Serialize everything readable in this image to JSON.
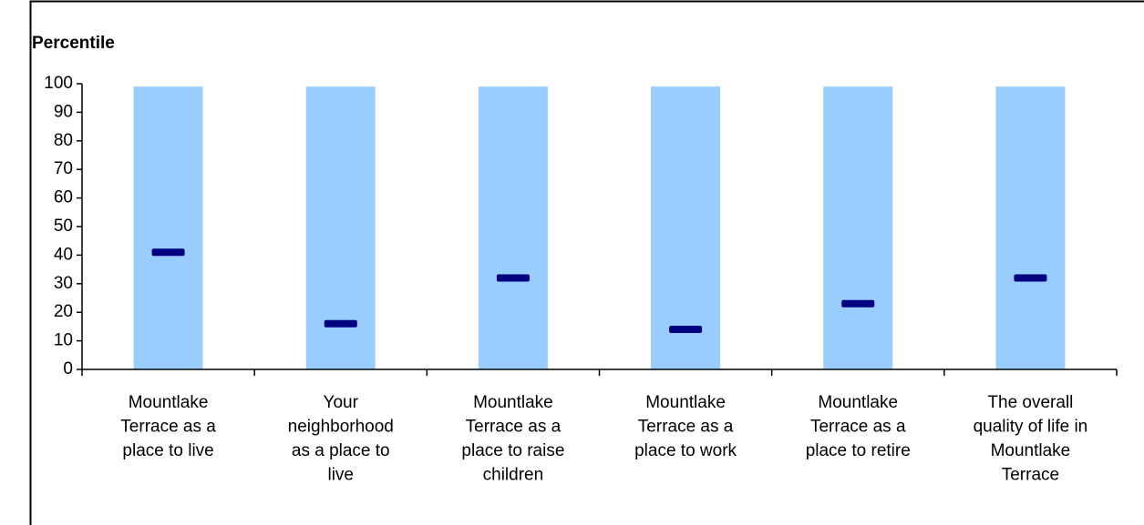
{
  "chart_data": {
    "type": "bar",
    "ylabel": "Percentile",
    "categories": [
      [
        "Mountlake",
        "Terrace as a",
        "place to live"
      ],
      [
        "Your",
        "neighborhood",
        "as a place to",
        "live"
      ],
      [
        "Mountlake",
        "Terrace as a",
        "place to raise",
        "children"
      ],
      [
        "Mountlake",
        "Terrace as a",
        "place to work"
      ],
      [
        "Mountlake",
        "Terrace as a",
        "place to retire"
      ],
      [
        "The overall",
        "quality of life in",
        "Mountlake",
        "Terrace"
      ]
    ],
    "series": [
      {
        "color": "#99ccff",
        "values": [
          99,
          99,
          99,
          99,
          99,
          99
        ]
      },
      {
        "color": "#000080",
        "values": [
          41,
          16,
          32,
          14,
          23,
          32
        ]
      }
    ],
    "ylim": [
      0,
      100
    ],
    "yticks": [
      0,
      10,
      20,
      30,
      40,
      50,
      60,
      70,
      80,
      90,
      100
    ]
  }
}
